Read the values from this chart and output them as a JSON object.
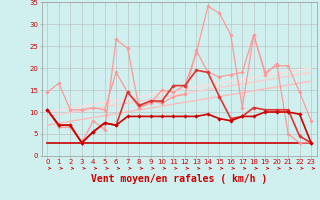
{
  "background_color": "#cff0ee",
  "grid_color": "#bbbbbb",
  "xlabel": "Vent moyen/en rafales ( km/h )",
  "xlabel_color": "#cc0000",
  "xlabel_fontsize": 7,
  "tick_color": "#cc0000",
  "tick_fontsize": 5,
  "xlim": [
    -0.5,
    23.5
  ],
  "ylim": [
    0,
    35
  ],
  "yticks": [
    0,
    5,
    10,
    15,
    20,
    25,
    30,
    35
  ],
  "xticks": [
    0,
    1,
    2,
    3,
    4,
    5,
    6,
    7,
    8,
    9,
    10,
    11,
    12,
    13,
    14,
    15,
    16,
    17,
    18,
    19,
    20,
    21,
    22,
    23
  ],
  "series": [
    {
      "x": [
        0,
        1,
        2,
        3,
        4,
        5,
        6,
        7,
        8,
        9,
        10,
        11,
        12,
        13,
        14,
        15,
        16,
        17,
        18,
        19,
        20,
        21,
        22,
        23
      ],
      "y": [
        14.5,
        16.5,
        10.5,
        10.5,
        11,
        10.5,
        19,
        14.5,
        11,
        12.5,
        12,
        13.5,
        14,
        24,
        19,
        18,
        18.5,
        19,
        27.5,
        19,
        20.5,
        20.5,
        14.5,
        8
      ],
      "color": "#ff9999",
      "lw": 0.9,
      "marker": "D",
      "ms": 1.8
    },
    {
      "x": [
        0,
        1,
        2,
        3,
        4,
        5,
        6,
        7,
        8,
        9,
        10,
        11,
        12,
        13,
        14,
        15,
        16,
        17,
        18,
        19,
        20,
        21,
        22,
        23
      ],
      "y": [
        10.5,
        6.5,
        6.5,
        3,
        8,
        6,
        26.5,
        24.5,
        11,
        12,
        15,
        14.5,
        16,
        23.5,
        34,
        32.5,
        27.5,
        11,
        27.5,
        18.5,
        21,
        5,
        3,
        3
      ],
      "color": "#ff9999",
      "lw": 0.9,
      "marker": "D",
      "ms": 1.8
    },
    {
      "x": [
        0,
        1,
        2,
        3,
        4,
        5,
        6,
        7,
        8,
        9,
        10,
        11,
        12,
        13,
        14,
        15,
        16,
        17,
        18,
        19,
        20,
        21,
        22,
        23
      ],
      "y": [
        10.5,
        7,
        7,
        3,
        5.5,
        7.5,
        7,
        14.5,
        11.5,
        12.5,
        12.5,
        16,
        16,
        19.5,
        19,
        13.5,
        8.5,
        9,
        11,
        10.5,
        10.5,
        10.5,
        4.5,
        3
      ],
      "color": "#dd3333",
      "lw": 1.2,
      "marker": "D",
      "ms": 1.8
    },
    {
      "x": [
        0,
        1,
        2,
        3,
        4,
        5,
        6,
        7,
        8,
        9,
        10,
        11,
        12,
        13,
        14,
        15,
        16,
        17,
        18,
        19,
        20,
        21,
        22,
        23
      ],
      "y": [
        10.5,
        7,
        7,
        3,
        5.5,
        7.5,
        7,
        9,
        9,
        9,
        9,
        9,
        9,
        9,
        9.5,
        8.5,
        8,
        9,
        9,
        10,
        10,
        10,
        9.5,
        3
      ],
      "color": "#cc0000",
      "lw": 1.2,
      "marker": "D",
      "ms": 1.8
    },
    {
      "x": [
        0,
        23
      ],
      "y": [
        3,
        3
      ],
      "color": "#cc0000",
      "lw": 1.2,
      "marker": null,
      "ms": 0
    },
    {
      "x": [
        0,
        23
      ],
      "y": [
        7,
        17
      ],
      "color": "#ffbbbb",
      "lw": 1.0,
      "marker": null,
      "ms": 0
    },
    {
      "x": [
        0,
        23
      ],
      "y": [
        9,
        19
      ],
      "color": "#ffcccc",
      "lw": 1.0,
      "marker": null,
      "ms": 0
    },
    {
      "x": [
        0,
        23
      ],
      "y": [
        10,
        20
      ],
      "color": "#ffdddd",
      "lw": 1.0,
      "marker": null,
      "ms": 0
    }
  ]
}
